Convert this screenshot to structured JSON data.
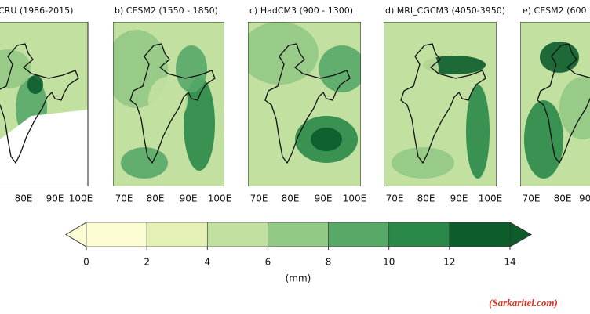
{
  "panels": [
    {
      "title": "CRU (1986-2015)",
      "xticks": [
        "80E",
        "90E",
        "100E"
      ]
    },
    {
      "title": "b) CESM2 (1550 - 1850)",
      "xticks": [
        "70E",
        "80E",
        "90E",
        "100E"
      ]
    },
    {
      "title": "c) HadCM3 (900 - 1300)",
      "xticks": [
        "70E",
        "80E",
        "90E",
        "100E"
      ]
    },
    {
      "title": "d) MRI_CGCM3 (4050-3950)",
      "xticks": [
        "70E",
        "80E",
        "90E",
        "100E"
      ]
    },
    {
      "title": "e) CESM2 (600",
      "xticks": [
        "70E",
        "80E",
        "90("
      ]
    }
  ],
  "colorbar": {
    "ticks": [
      0,
      2,
      4,
      6,
      8,
      10,
      12,
      14
    ],
    "colors": [
      "#fcfdd2",
      "#e3f1b4",
      "#c2e0a0",
      "#92c984",
      "#58a868",
      "#2a8849",
      "#0c5c2c"
    ],
    "label": "(mm)"
  },
  "watermark": "(Sarkaritel.com)"
}
